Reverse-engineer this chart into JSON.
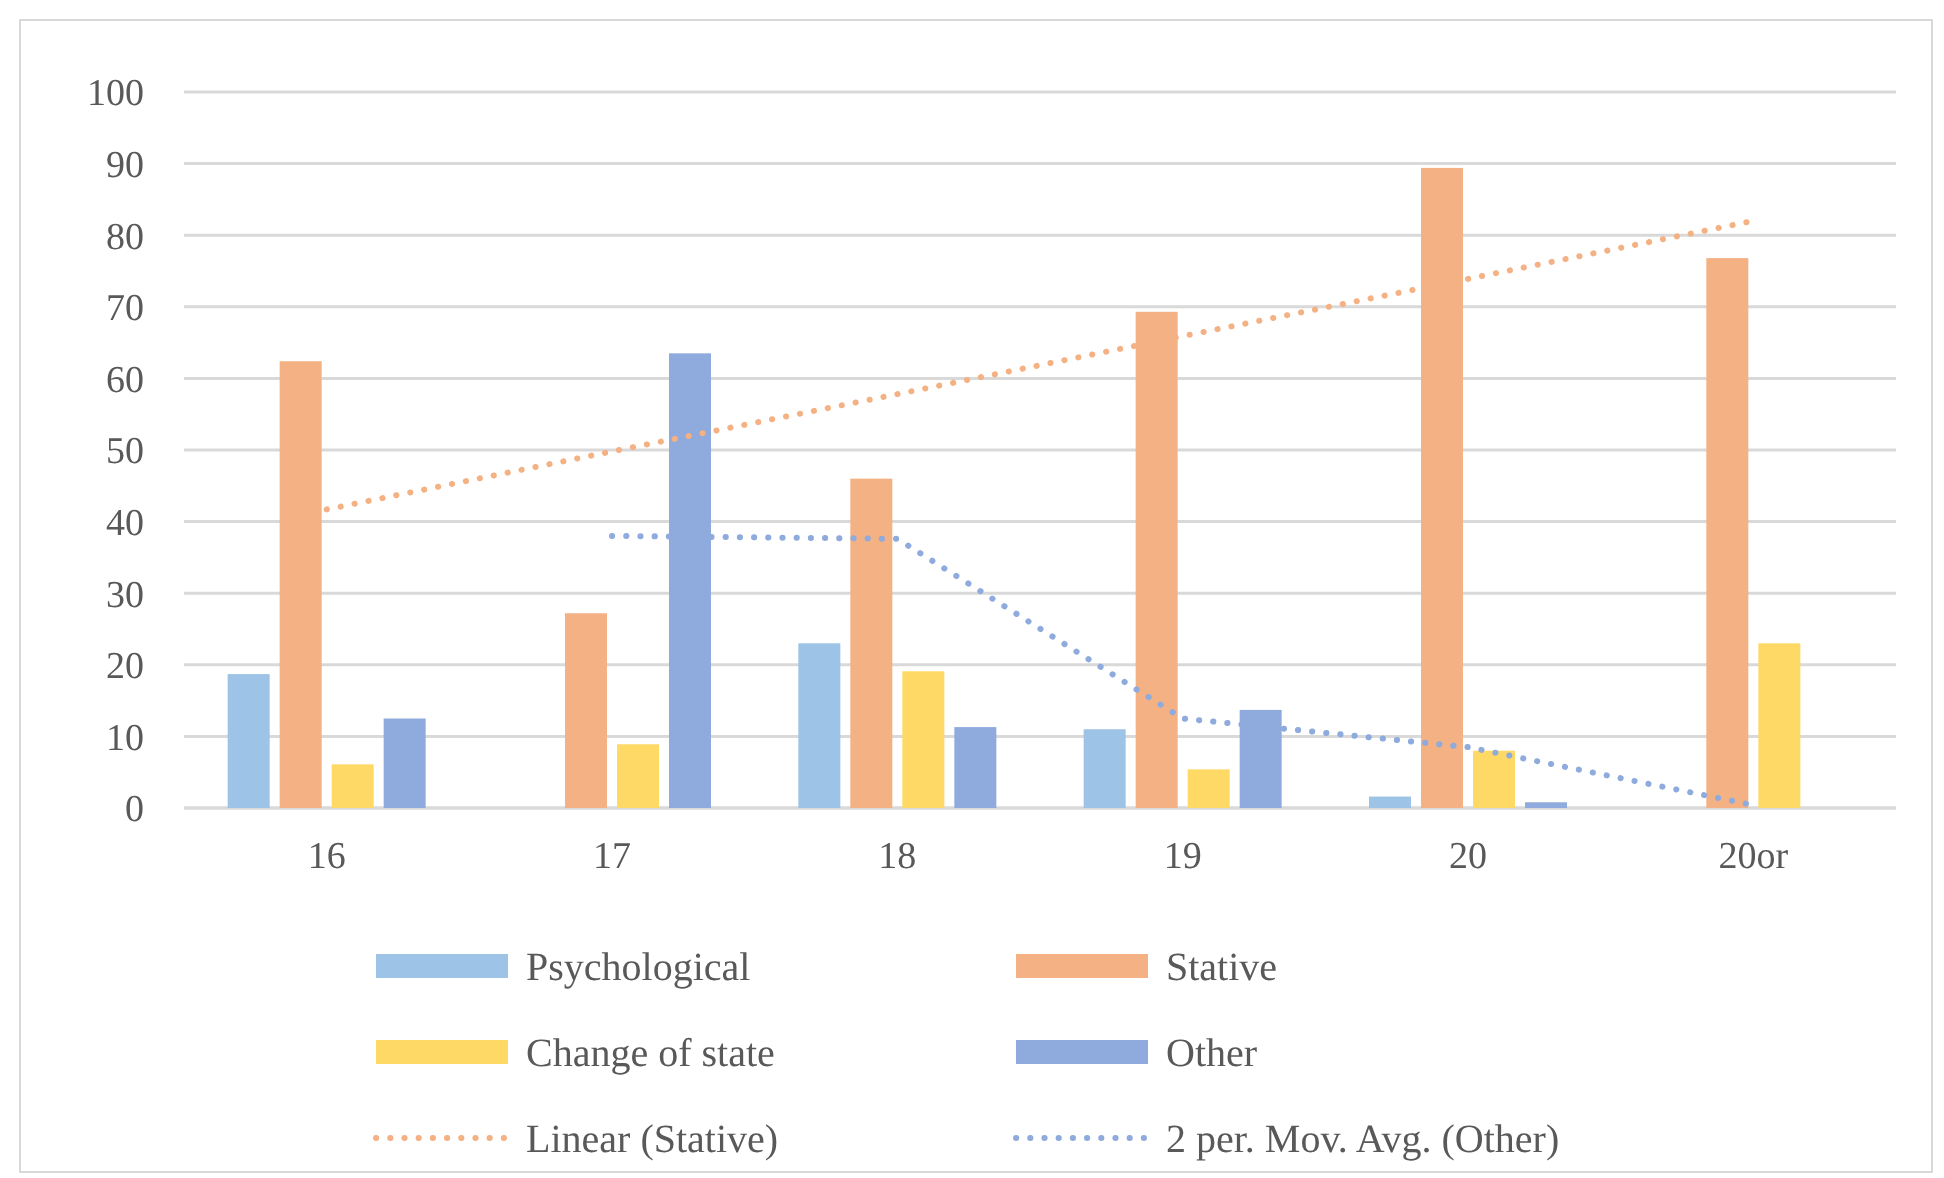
{
  "chart_data": {
    "type": "bar",
    "categories": [
      "16",
      "17",
      "18",
      "19",
      "20",
      "20or"
    ],
    "series": [
      {
        "name": "Psychological",
        "color": "#9dc3e6",
        "values": [
          18.7,
          0,
          23,
          11,
          1.6,
          0
        ]
      },
      {
        "name": "Stative",
        "color": "#f4b183",
        "values": [
          62.4,
          27.2,
          46,
          69.3,
          89.4,
          76.8
        ]
      },
      {
        "name": "Change of state",
        "color": "#ffd966",
        "values": [
          6.1,
          8.9,
          19.1,
          5.4,
          8,
          23
        ]
      },
      {
        "name": "Other",
        "color": "#8faadc",
        "values": [
          12.5,
          63.5,
          11.3,
          13.7,
          0.8,
          0
        ]
      },
      {
        "name": "Linear (Stative)",
        "type": "line",
        "line_style": "dotted",
        "color": "#f4b183",
        "values": [
          41.7,
          49.8,
          57.8,
          65.9,
          73.9,
          82.0
        ]
      },
      {
        "name": "2 per. Mov. Avg. (Other)",
        "type": "line",
        "line_style": "dotted",
        "color": "#8faadc",
        "values": [
          null,
          38,
          37.6,
          12.5,
          8.5,
          0.4
        ]
      }
    ],
    "ylim": [
      0,
      100
    ],
    "yticks": [
      0,
      10,
      20,
      30,
      40,
      50,
      60,
      70,
      80,
      90,
      100
    ],
    "grid": "y",
    "legend": "bottom"
  }
}
